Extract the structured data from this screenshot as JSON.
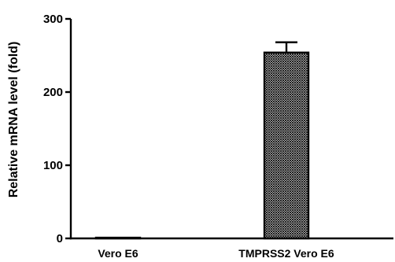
{
  "chart_data": {
    "type": "bar",
    "categories": [
      "Vero E6",
      "TMPRSS2 Vero E6"
    ],
    "values": [
      1,
      254
    ],
    "error": [
      0,
      14
    ],
    "ylabel": "Relative mRNA level (fold)",
    "xlabel": "",
    "ylim": [
      0,
      300
    ],
    "yticks": [
      0,
      100,
      200,
      300
    ],
    "grid": false,
    "legend": "none",
    "bar_fill": "crosshatch"
  }
}
